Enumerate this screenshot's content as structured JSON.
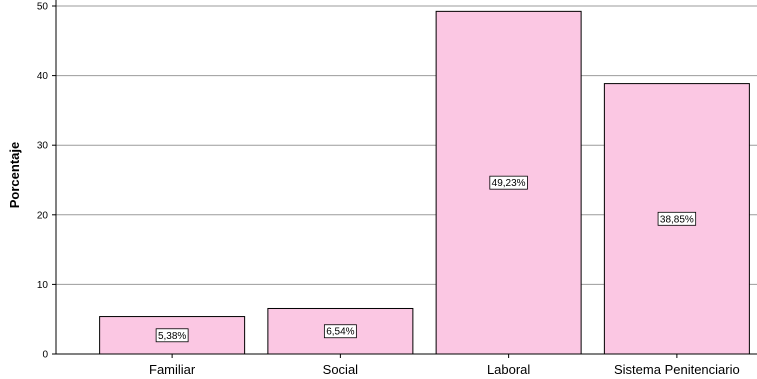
{
  "chart_data": {
    "type": "bar",
    "categories": [
      "Familiar",
      "Social",
      "Laboral",
      "Sistema Penitenciario"
    ],
    "values": [
      5.38,
      6.54,
      49.23,
      38.85
    ],
    "data_labels": [
      "5,38%",
      "6,54%",
      "49,23%",
      "38,85%"
    ],
    "ylabel": "Porcentaje",
    "xlabel": "",
    "ylim": [
      0,
      50
    ],
    "yticks": [
      0,
      10,
      20,
      30,
      40,
      50
    ],
    "ytick_labels": [
      "0",
      "10",
      "20",
      "30",
      "40",
      "50"
    ],
    "grid": true,
    "bar_color": "#fbc7e3",
    "bar_edge_color": "#000000",
    "grid_color": "#9b9b9b"
  }
}
